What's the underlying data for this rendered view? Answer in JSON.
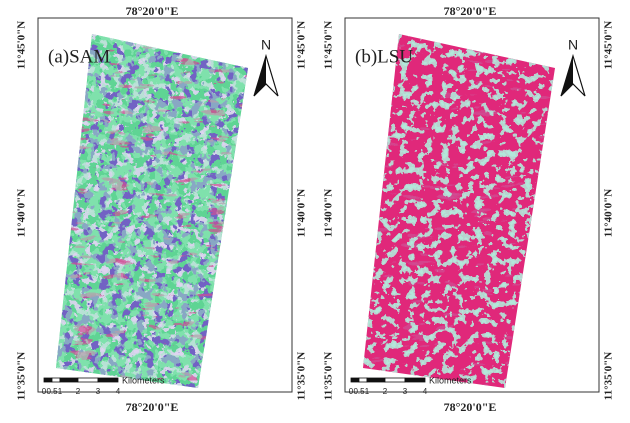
{
  "panels": [
    {
      "label": "(a)SAM",
      "top_label": "78°20'0\"E",
      "bottom_label": "78°20'0\"E",
      "left_labels": [
        "11°45'0\"N",
        "11°40'0\"N",
        "11°35'0\"N"
      ],
      "right_labels": [
        "11°45'0\"N",
        "11°40'0\"N",
        "11°35'0\"N"
      ],
      "north": "N",
      "scale": {
        "unit": "Kilometers",
        "ticks": [
          "0",
          "0.5",
          "1",
          "2",
          "3",
          "4"
        ]
      }
    },
    {
      "label": "(b)LSU",
      "top_label": "78°20'0\"E",
      "bottom_label": "78°20'0\"E",
      "left_labels": [
        "11°45'0\"N",
        "11°40'0\"N",
        "11°35'0\"N"
      ],
      "right_labels": [
        "11°45'0\"N",
        "11°40'0\"N",
        "11°35'0\"N"
      ],
      "north": "N",
      "scale": {
        "unit": "Kilometers",
        "ticks": [
          "0",
          "0.5",
          "1",
          "2",
          "3",
          "4"
        ]
      }
    }
  ]
}
